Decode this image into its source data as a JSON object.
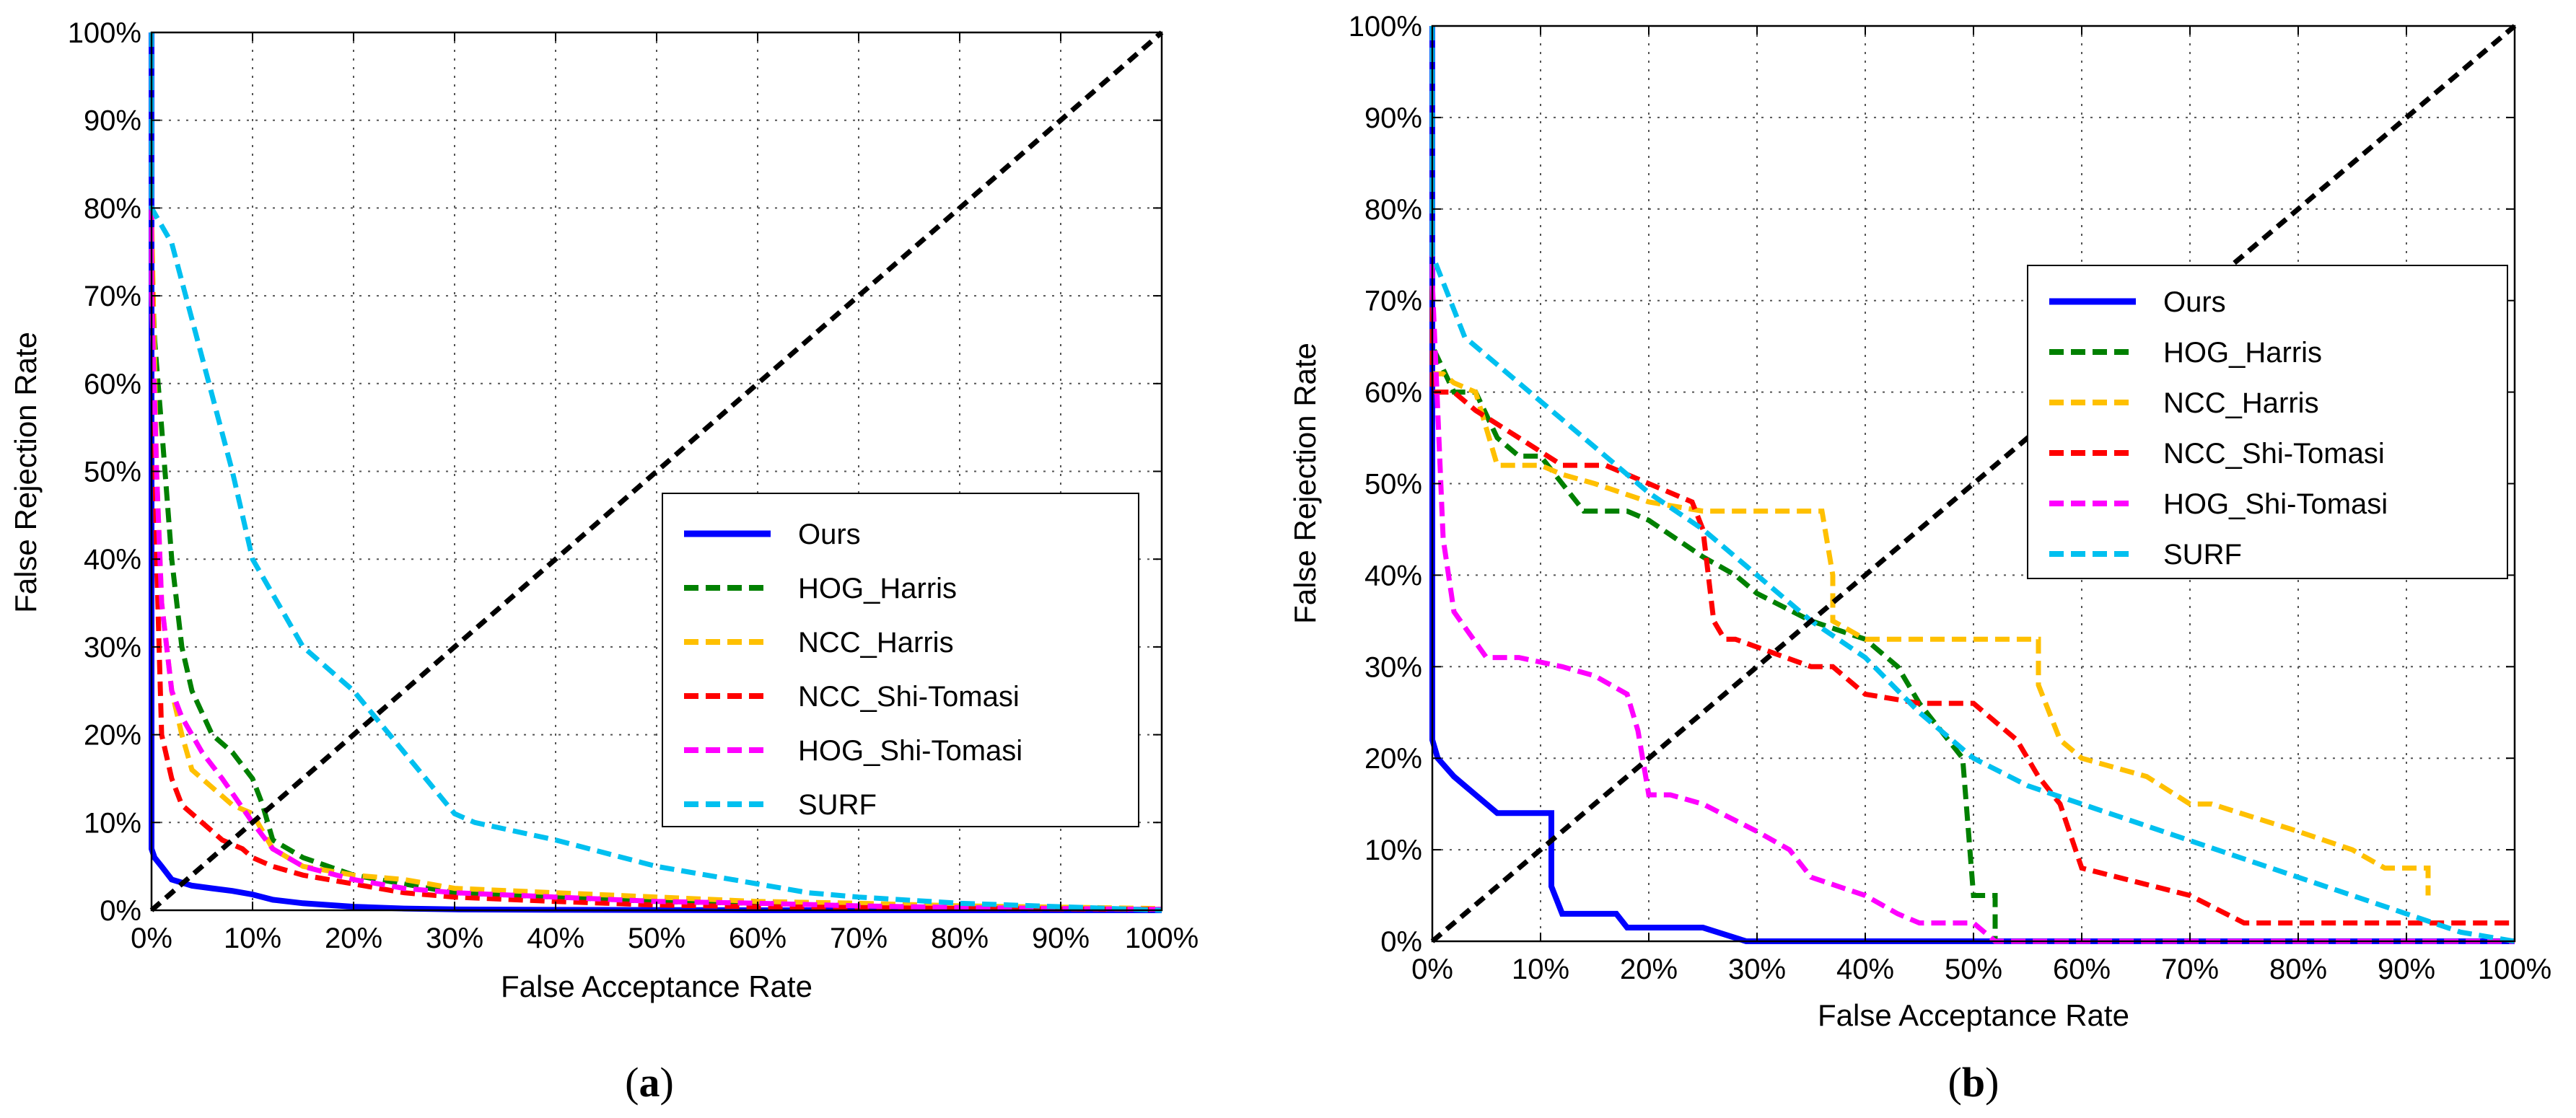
{
  "chart_data": [
    {
      "type": "line",
      "caption_open": "(",
      "caption_letter": "a",
      "caption_close": ")",
      "xlabel": "False Acceptance Rate",
      "ylabel": "False Rejection Rate",
      "xlim": [
        0,
        100
      ],
      "ylim": [
        0,
        100
      ],
      "grid": true,
      "legend_position": "center-right",
      "xticks": [
        "0%",
        "10%",
        "20%",
        "30%",
        "40%",
        "50%",
        "60%",
        "70%",
        "80%",
        "90%",
        "100%"
      ],
      "yticks": [
        "0%",
        "10%",
        "20%",
        "30%",
        "40%",
        "50%",
        "60%",
        "70%",
        "80%",
        "90%",
        "100%"
      ],
      "series": [
        {
          "name": "Ours",
          "color": "#0000ff",
          "style": "solid",
          "x": [
            0,
            0,
            0.3,
            1,
            2,
            4,
            6,
            8,
            10,
            12,
            15,
            20,
            25,
            30,
            40,
            60,
            80,
            100
          ],
          "y": [
            100,
            7,
            6,
            5,
            3.5,
            2.8,
            2.5,
            2.2,
            1.8,
            1.2,
            0.8,
            0.4,
            0.2,
            0.1,
            0.05,
            0,
            0,
            0
          ]
        },
        {
          "name": "HOG_Harris",
          "color": "#008000",
          "style": "dashed",
          "x": [
            0,
            0,
            0.3,
            1,
            2,
            3,
            4,
            6,
            8,
            10,
            11,
            12,
            15,
            20,
            25,
            30,
            40,
            50,
            60,
            70,
            80,
            100
          ],
          "y": [
            100,
            75,
            65,
            55,
            40,
            30,
            25,
            20,
            18,
            15,
            12,
            8,
            6,
            4,
            3,
            2,
            1.5,
            1,
            0.8,
            0.5,
            0.3,
            0.1
          ]
        },
        {
          "name": "NCC_Harris",
          "color": "#ffc000",
          "style": "dashed",
          "x": [
            0,
            0,
            0.5,
            1,
            2,
            3,
            4,
            6,
            8,
            10,
            12,
            15,
            20,
            25,
            30,
            40,
            50,
            60,
            70,
            80,
            100
          ],
          "y": [
            100,
            80,
            50,
            35,
            25,
            20,
            16,
            14,
            12,
            11,
            7,
            5,
            4,
            3.5,
            2.5,
            2,
            1.5,
            1,
            0.8,
            0.5,
            0.2
          ]
        },
        {
          "name": "NCC_Shi-Tomasi",
          "color": "#ff0000",
          "style": "dashed",
          "x": [
            0,
            0,
            0.5,
            1,
            2,
            3,
            5,
            7,
            9,
            10,
            12,
            15,
            20,
            25,
            30,
            40,
            50,
            60,
            70,
            80,
            100
          ],
          "y": [
            100,
            75,
            40,
            20,
            15,
            12,
            10,
            8,
            7,
            6,
            5,
            4,
            3,
            2,
            1.5,
            1,
            0.6,
            0.4,
            0.3,
            0.2,
            0.1
          ]
        },
        {
          "name": "HOG_Shi-Tomasi",
          "color": "#ff00ff",
          "style": "dashed",
          "x": [
            0,
            0,
            0.5,
            1,
            2,
            3,
            5,
            7,
            10,
            12,
            15,
            20,
            25,
            30,
            40,
            50,
            60,
            70,
            80,
            100
          ],
          "y": [
            100,
            70,
            50,
            35,
            25,
            22,
            18,
            15,
            10,
            7,
            5,
            3.5,
            2.5,
            2,
            1.5,
            1,
            0.8,
            0.5,
            0.3,
            0.1
          ]
        },
        {
          "name": "SURF",
          "color": "#00c0f0",
          "style": "dashed",
          "x": [
            0,
            0,
            2,
            5,
            8,
            10,
            12,
            15,
            20,
            25,
            30,
            32,
            40,
            50,
            60,
            65,
            70,
            80,
            90,
            100
          ],
          "y": [
            100,
            80,
            76,
            63,
            50,
            40,
            36,
            30,
            25,
            18,
            11,
            10,
            8,
            5,
            3,
            2,
            1.5,
            0.8,
            0.4,
            0
          ]
        },
        {
          "name": "",
          "color": "#000000",
          "style": "dashed",
          "legend": false,
          "x": [
            0,
            100
          ],
          "y": [
            0,
            100
          ]
        }
      ]
    },
    {
      "type": "line",
      "caption_open": "(",
      "caption_letter": "b",
      "caption_close": ")",
      "xlabel": "False Acceptance Rate",
      "ylabel": "False Rejection Rate",
      "xlim": [
        0,
        100
      ],
      "ylim": [
        0,
        100
      ],
      "grid": true,
      "legend_position": "upper-right",
      "xticks": [
        "0%",
        "10%",
        "20%",
        "30%",
        "40%",
        "50%",
        "60%",
        "70%",
        "80%",
        "90%",
        "100%"
      ],
      "yticks": [
        "0%",
        "10%",
        "20%",
        "30%",
        "40%",
        "50%",
        "60%",
        "70%",
        "80%",
        "90%",
        "100%"
      ],
      "series": [
        {
          "name": "Ours",
          "color": "#0000ff",
          "style": "solid",
          "x": [
            0,
            0,
            0.5,
            2,
            4,
            6,
            8,
            9,
            11,
            11,
            12,
            16,
            17,
            18,
            25,
            29,
            30,
            40,
            50,
            60,
            70,
            80,
            90,
            100
          ],
          "y": [
            100,
            22,
            20,
            18,
            16,
            14,
            14,
            14,
            14,
            6,
            3,
            3,
            3,
            1.5,
            1.5,
            0,
            0,
            0,
            0,
            0,
            0,
            0,
            0,
            0
          ]
        },
        {
          "name": "HOG_Harris",
          "color": "#008000",
          "style": "dashed",
          "x": [
            0,
            0,
            2,
            4,
            6,
            8,
            10,
            12,
            14,
            16,
            18,
            20,
            25,
            28,
            30,
            35,
            40,
            43,
            45,
            49,
            50,
            52,
            52
          ],
          "y": [
            100,
            65,
            60,
            60,
            55,
            53,
            53,
            50,
            47,
            47,
            47,
            46,
            42,
            40,
            38,
            35,
            33,
            30,
            26,
            20,
            5,
            5,
            0
          ]
        },
        {
          "name": "NCC_Harris",
          "color": "#ffc000",
          "style": "dashed",
          "x": [
            0,
            0,
            1,
            2,
            4,
            6,
            8,
            10,
            12,
            15,
            20,
            25,
            30,
            36,
            37,
            37,
            40,
            56,
            56,
            58,
            60,
            66,
            70,
            72,
            80,
            85,
            88,
            92,
            92
          ],
          "y": [
            100,
            62,
            62,
            61,
            60,
            52,
            52,
            52,
            51,
            50,
            48,
            47,
            47,
            47,
            40,
            35,
            33,
            33,
            28,
            22,
            20,
            18,
            15,
            15,
            12,
            10,
            8,
            8,
            5
          ]
        },
        {
          "name": "NCC_Shi-Tomasi",
          "color": "#ff0000",
          "style": "dashed",
          "x": [
            0,
            0,
            2,
            4,
            8,
            12,
            16,
            20,
            24,
            25,
            26,
            27,
            28,
            35,
            37,
            40,
            45,
            50,
            54,
            56,
            58,
            60,
            70,
            75,
            80,
            90,
            100
          ],
          "y": [
            100,
            60,
            60,
            58,
            55,
            52,
            52,
            50,
            48,
            45,
            35,
            33,
            33,
            30,
            30,
            27,
            26,
            26,
            22,
            18,
            15,
            8,
            5,
            2,
            2,
            2,
            2
          ]
        },
        {
          "name": "HOG_Shi-Tomasi",
          "color": "#ff00ff",
          "style": "dashed",
          "x": [
            0,
            0,
            1,
            2,
            5,
            8,
            12,
            15,
            18,
            19,
            20,
            22,
            25,
            30,
            33,
            35,
            40,
            43,
            45,
            50,
            52,
            60,
            70,
            80,
            90,
            100
          ],
          "y": [
            100,
            72,
            44,
            36,
            31,
            31,
            30,
            29,
            27,
            23,
            16,
            16,
            15,
            12,
            10,
            7,
            5,
            3,
            2,
            2,
            0,
            0,
            0,
            0,
            0,
            0
          ]
        },
        {
          "name": "SURF",
          "color": "#00c0f0",
          "style": "dashed",
          "x": [
            0,
            0,
            3,
            6,
            10,
            15,
            20,
            25,
            30,
            35,
            40,
            45,
            50,
            55,
            60,
            65,
            70,
            75,
            80,
            85,
            90,
            95,
            100
          ],
          "y": [
            100,
            75,
            66,
            63,
            59,
            54,
            49,
            45,
            40,
            35,
            31,
            25,
            20,
            17,
            15,
            13,
            11,
            9,
            7,
            5,
            3,
            1,
            0
          ]
        },
        {
          "name": "",
          "color": "#000000",
          "style": "dashed",
          "legend": false,
          "x": [
            0,
            100
          ],
          "y": [
            0,
            100
          ]
        }
      ]
    }
  ]
}
